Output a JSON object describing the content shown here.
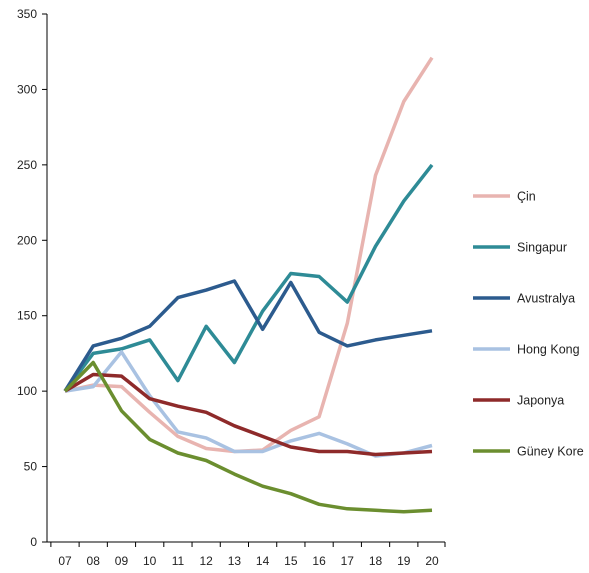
{
  "chart_data": {
    "type": "line",
    "title": "",
    "xlabel": "",
    "ylabel": "",
    "categories": [
      "07",
      "08",
      "09",
      "10",
      "11",
      "12",
      "13",
      "14",
      "15",
      "16",
      "17",
      "18",
      "19",
      "20"
    ],
    "ylim": [
      0,
      350
    ],
    "yticks": [
      0,
      50,
      100,
      150,
      200,
      250,
      300,
      350
    ],
    "grid": false,
    "legend_position": "right",
    "series": [
      {
        "name": "Çin",
        "color": "#e8b4b0",
        "values": [
          100,
          104,
          103,
          86,
          70,
          62,
          60,
          61,
          74,
          83,
          145,
          243,
          292,
          321
        ]
      },
      {
        "name": "Singapur",
        "color": "#2e8b96",
        "values": [
          100,
          125,
          128,
          134,
          107,
          143,
          119,
          153,
          178,
          176,
          159,
          196,
          226,
          250
        ]
      },
      {
        "name": "Avustralya",
        "color": "#2c5b8e",
        "values": [
          100,
          130,
          135,
          143,
          162,
          167,
          173,
          141,
          172,
          139,
          130,
          134,
          137,
          140
        ]
      },
      {
        "name": "Hong Kong",
        "color": "#a9c2e2",
        "values": [
          100,
          103,
          126,
          97,
          73,
          69,
          60,
          60,
          67,
          72,
          65,
          57,
          59,
          64
        ]
      },
      {
        "name": "Japonya",
        "color": "#8e2a2a",
        "values": [
          100,
          111,
          110,
          95,
          90,
          86,
          77,
          70,
          63,
          60,
          60,
          58,
          59,
          60
        ]
      },
      {
        "name": "Güney Kore",
        "color": "#6b8e2f",
        "values": [
          100,
          119,
          87,
          68,
          59,
          54,
          45,
          37,
          32,
          25,
          22,
          21,
          20,
          21
        ]
      }
    ]
  }
}
